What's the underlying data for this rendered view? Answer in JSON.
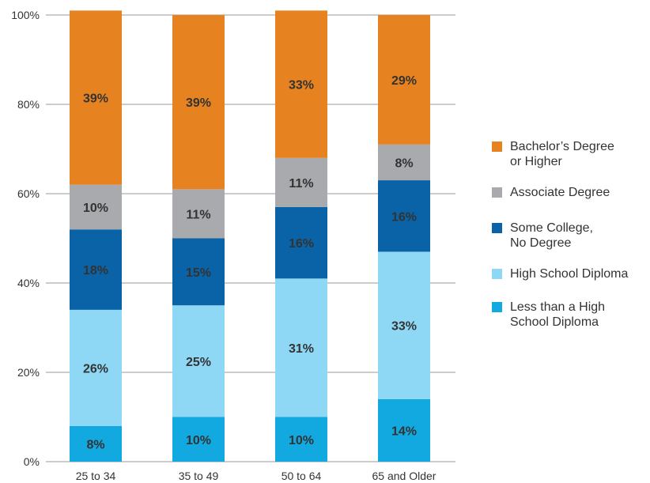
{
  "chart_data": {
    "type": "bar",
    "stacked": true,
    "categories": [
      "25 to 34",
      "35 to 49",
      "50 to 64",
      "65 and Older"
    ],
    "y_ticks": [
      "0%",
      "20%",
      "40%",
      "60%",
      "80%",
      "100%"
    ],
    "ylim": [
      0,
      100
    ],
    "grid": true,
    "legend_position": "right",
    "series": [
      {
        "name": "Less than a High\nSchool Diploma",
        "color": "#12a8e0",
        "values": [
          8,
          10,
          10,
          14
        ],
        "labels": [
          "8%",
          "10%",
          "10%",
          "14%"
        ]
      },
      {
        "name": "High School Diploma",
        "color": "#8ed8f6",
        "values": [
          26,
          25,
          31,
          33
        ],
        "labels": [
          "26%",
          "25%",
          "31%",
          "33%"
        ]
      },
      {
        "name": "Some College,\nNo Degree",
        "color": "#0a63a6",
        "values": [
          18,
          15,
          16,
          16
        ],
        "labels": [
          "18%",
          "15%",
          "16%",
          "16%"
        ]
      },
      {
        "name": "Associate Degree",
        "color": "#a8aaae",
        "values": [
          10,
          11,
          11,
          8
        ],
        "labels": [
          "10%",
          "11%",
          "11%",
          "8%"
        ]
      },
      {
        "name": "Bachelor’s Degree\nor Higher",
        "color": "#e6821f",
        "values": [
          39,
          39,
          33,
          29
        ],
        "labels": [
          "39%",
          "39%",
          "33%",
          "29%"
        ]
      }
    ]
  }
}
